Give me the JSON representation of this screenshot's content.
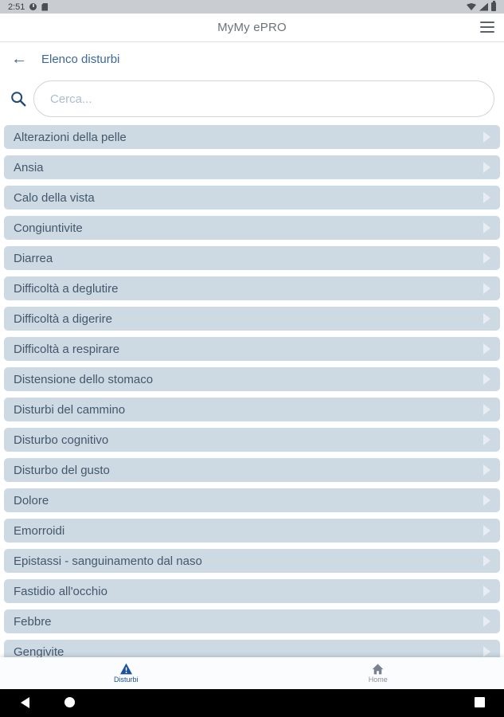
{
  "status_bar": {
    "time": "2:51",
    "left_icons": [
      "data-saver-icon",
      "sim-icon"
    ],
    "right_icons": [
      "wifi-icon",
      "signal-icon",
      "battery-icon"
    ]
  },
  "app_bar": {
    "title": "MyMy ePRO",
    "menu_icon": "hamburger-icon"
  },
  "page_header": {
    "back_icon": "arrow-left-icon",
    "title": "Elenco disturbi"
  },
  "search": {
    "value": "",
    "placeholder": "Cerca...",
    "icon": "search-icon"
  },
  "list": {
    "items": [
      "Alterazioni della pelle",
      "Ansia",
      "Calo della vista",
      "Congiuntivite",
      "Diarrea",
      "Difficoltà a deglutire",
      "Difficoltà a digerire",
      "Difficoltà a respirare",
      "Distensione dello stomaco",
      "Disturbi del cammino",
      "Disturbo cognitivo",
      "Disturbo del gusto",
      "Dolore",
      "Emorroidi",
      "Epistassi - sanguinamento dal naso",
      "Fastidio all'occhio",
      "Febbre",
      "Gengivite"
    ]
  },
  "bottom_nav": {
    "items": [
      {
        "label": "Disturbi",
        "icon": "warning-triangle-icon",
        "active": true
      },
      {
        "label": "Home",
        "icon": "home-icon",
        "active": false
      }
    ]
  },
  "android_nav": {
    "icons": [
      "back-icon",
      "home-circle-icon",
      "recents-square-icon"
    ]
  },
  "colors": {
    "accent_blue": "#3c6898",
    "active_nav_blue": "#1b4fa0",
    "row_background": "#cdd9e3",
    "row_text": "#44576b",
    "placeholder": "#a9bdd0",
    "status_bar_bg": "#c9cdd1",
    "android_nav_bg": "#000000"
  },
  "glyphs": {
    "back_arrow": "←"
  }
}
